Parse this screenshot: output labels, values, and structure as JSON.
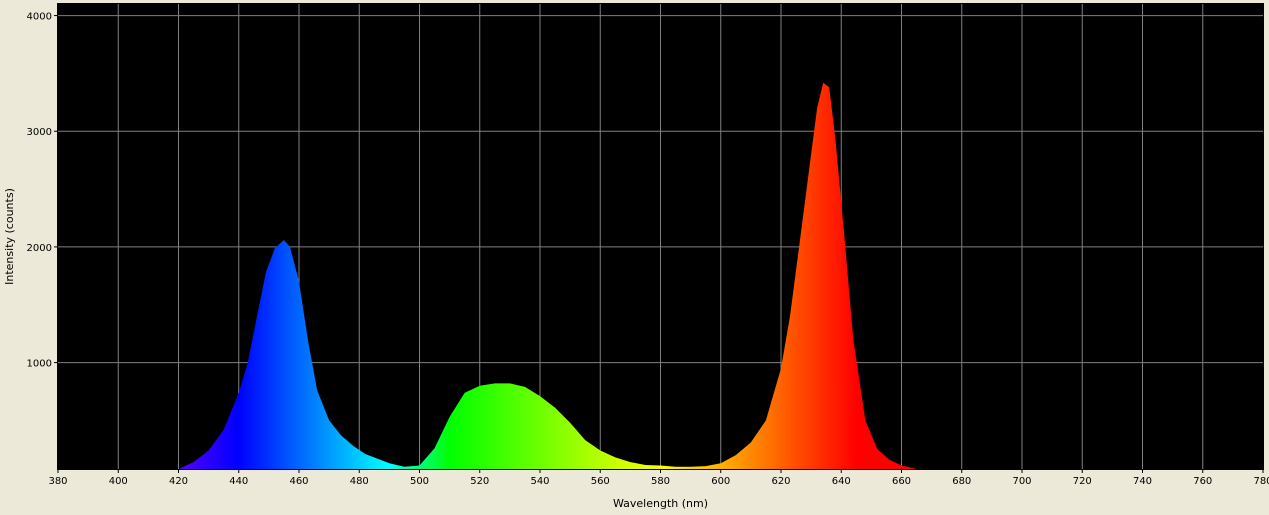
{
  "chart_data": {
    "type": "area",
    "title": "",
    "xlabel": "Wavelength (nm)",
    "ylabel": "Intensity (counts)",
    "xlim": [
      380,
      780
    ],
    "ylim": [
      80,
      4100
    ],
    "x_ticks": [
      380,
      400,
      420,
      440,
      460,
      480,
      500,
      520,
      540,
      560,
      580,
      600,
      620,
      640,
      660,
      680,
      700,
      720,
      740,
      760,
      780
    ],
    "x_tick_labels": [
      "380",
      "400",
      "420",
      "440",
      "460",
      "480",
      "500",
      "520",
      "540",
      "560",
      "580",
      "600",
      "620",
      "640",
      "660",
      "680",
      "700",
      "720",
      "740",
      "760",
      "780"
    ],
    "y_ticks": [
      1000,
      2000,
      3000,
      4000
    ],
    "y_tick_labels": [
      "1000",
      "2000",
      "3000",
      "4000"
    ],
    "grid": true,
    "fill": "spectral-gradient",
    "background": "#000000",
    "grid_color": "#808080",
    "series": [
      {
        "x": [
          420,
          425,
          430,
          435,
          440,
          443,
          446,
          449,
          452,
          455,
          457,
          460,
          463,
          466,
          470,
          474,
          478,
          482,
          486,
          490,
          495,
          500,
          505,
          510,
          515,
          520,
          525,
          530,
          535,
          540,
          545,
          550,
          555,
          560,
          565,
          570,
          575,
          580,
          585,
          590,
          595,
          600,
          605,
          610,
          615,
          620,
          623,
          626,
          629,
          632,
          634,
          636,
          638,
          641,
          644,
          648,
          652,
          656,
          660,
          665
        ],
        "y": [
          80,
          140,
          240,
          420,
          740,
          1000,
          1390,
          1780,
          1990,
          2060,
          2000,
          1700,
          1190,
          760,
          500,
          370,
          280,
          210,
          170,
          130,
          100,
          110,
          260,
          530,
          740,
          800,
          820,
          820,
          790,
          710,
          610,
          480,
          330,
          240,
          180,
          140,
          115,
          110,
          100,
          100,
          105,
          130,
          200,
          310,
          500,
          950,
          1400,
          2000,
          2600,
          3200,
          3420,
          3380,
          2950,
          2100,
          1200,
          500,
          250,
          160,
          110,
          80
        ]
      }
    ]
  }
}
